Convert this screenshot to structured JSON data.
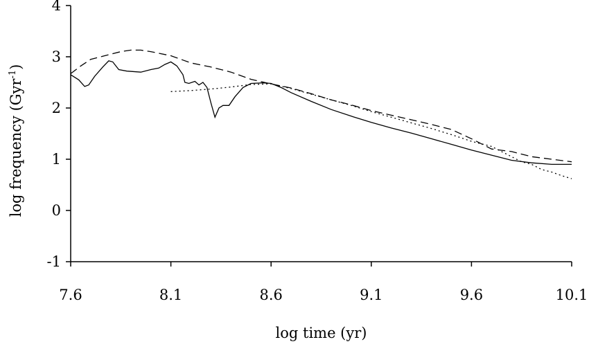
{
  "chart_data": {
    "type": "line",
    "title": "",
    "xlabel": "log time (yr)",
    "ylabel_main": "log frequency (Gyr",
    "ylabel_sup": "-1",
    "ylabel_close": ")",
    "xlim": [
      7.6,
      10.1
    ],
    "ylim": [
      -1,
      4
    ],
    "xticks": [
      "7.6",
      "8.1",
      "8.6",
      "9.1",
      "9.6",
      "10.1"
    ],
    "yticks": [
      "-1",
      "0",
      "1",
      "2",
      "3",
      "4"
    ],
    "grid": false,
    "legend": "none",
    "series": [
      {
        "style": "solid",
        "x": [
          7.6,
          7.64,
          7.67,
          7.69,
          7.72,
          7.76,
          7.79,
          7.81,
          7.84,
          7.88,
          7.95,
          8.0,
          8.04,
          8.07,
          8.1,
          8.13,
          8.16,
          8.17,
          8.19,
          8.22,
          8.24,
          8.26,
          8.28,
          8.3,
          8.32,
          8.34,
          8.36,
          8.39,
          8.42,
          8.46,
          8.5,
          8.56,
          8.6,
          8.65,
          8.7,
          8.8,
          8.9,
          9.0,
          9.1,
          9.2,
          9.3,
          9.4,
          9.5,
          9.6,
          9.7,
          9.8,
          9.9,
          10.0,
          10.1
        ],
        "y": [
          2.65,
          2.55,
          2.42,
          2.45,
          2.62,
          2.8,
          2.92,
          2.9,
          2.75,
          2.72,
          2.7,
          2.75,
          2.78,
          2.85,
          2.9,
          2.82,
          2.65,
          2.5,
          2.48,
          2.52,
          2.45,
          2.5,
          2.4,
          2.1,
          1.82,
          2.0,
          2.05,
          2.05,
          2.22,
          2.4,
          2.48,
          2.49,
          2.48,
          2.4,
          2.3,
          2.13,
          1.97,
          1.84,
          1.72,
          1.61,
          1.51,
          1.4,
          1.29,
          1.18,
          1.08,
          0.98,
          0.93,
          0.9,
          0.9
        ]
      },
      {
        "style": "dashed",
        "x": [
          7.6,
          7.65,
          7.7,
          7.8,
          7.85,
          7.9,
          7.95,
          8.0,
          8.1,
          8.2,
          8.3,
          8.4,
          8.5,
          8.6,
          8.7,
          8.8,
          8.9,
          9.0,
          9.1,
          9.2,
          9.3,
          9.4,
          9.5,
          9.6,
          9.7,
          9.8,
          9.9,
          10.0,
          10.1
        ],
        "y": [
          2.67,
          2.82,
          2.95,
          3.05,
          3.1,
          3.13,
          3.13,
          3.1,
          3.02,
          2.88,
          2.8,
          2.7,
          2.56,
          2.47,
          2.39,
          2.28,
          2.16,
          2.06,
          1.95,
          1.86,
          1.77,
          1.68,
          1.58,
          1.4,
          1.2,
          1.15,
          1.05,
          1.0,
          0.95
        ]
      },
      {
        "style": "dotted",
        "x": [
          8.1,
          8.2,
          8.3,
          8.4,
          8.5,
          8.6,
          8.7,
          8.8,
          8.9,
          9.0,
          9.1,
          9.2,
          9.3,
          9.4,
          9.5,
          9.6,
          9.7,
          9.75,
          9.8,
          9.85,
          9.9,
          9.95,
          10.0,
          10.05,
          10.1
        ],
        "y": [
          2.32,
          2.34,
          2.37,
          2.41,
          2.46,
          2.47,
          2.38,
          2.27,
          2.16,
          2.05,
          1.93,
          1.82,
          1.71,
          1.6,
          1.48,
          1.35,
          1.25,
          1.15,
          1.05,
          0.95,
          0.9,
          0.8,
          0.75,
          0.68,
          0.62
        ]
      }
    ]
  }
}
